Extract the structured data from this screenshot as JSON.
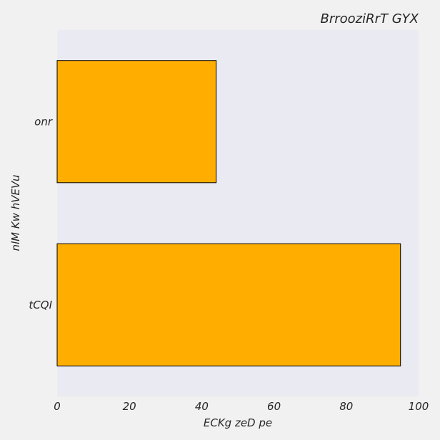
{
  "chart_data": {
    "type": "bar",
    "orientation": "horizontal",
    "title": "BrrooziRrT GYX",
    "xlabel": "ECKg  zeD pe",
    "ylabel": "nlM Kw hVEVu",
    "categories": [
      "onr",
      "tCQI"
    ],
    "values": [
      44,
      95
    ],
    "xlim": [
      0,
      100
    ],
    "xticks": [
      0,
      20,
      40,
      60,
      80,
      100
    ],
    "grid": false,
    "bar_color": "#FFAE00",
    "bar_edge_color": "#000000",
    "plot_background": "#EAEAF2"
  }
}
